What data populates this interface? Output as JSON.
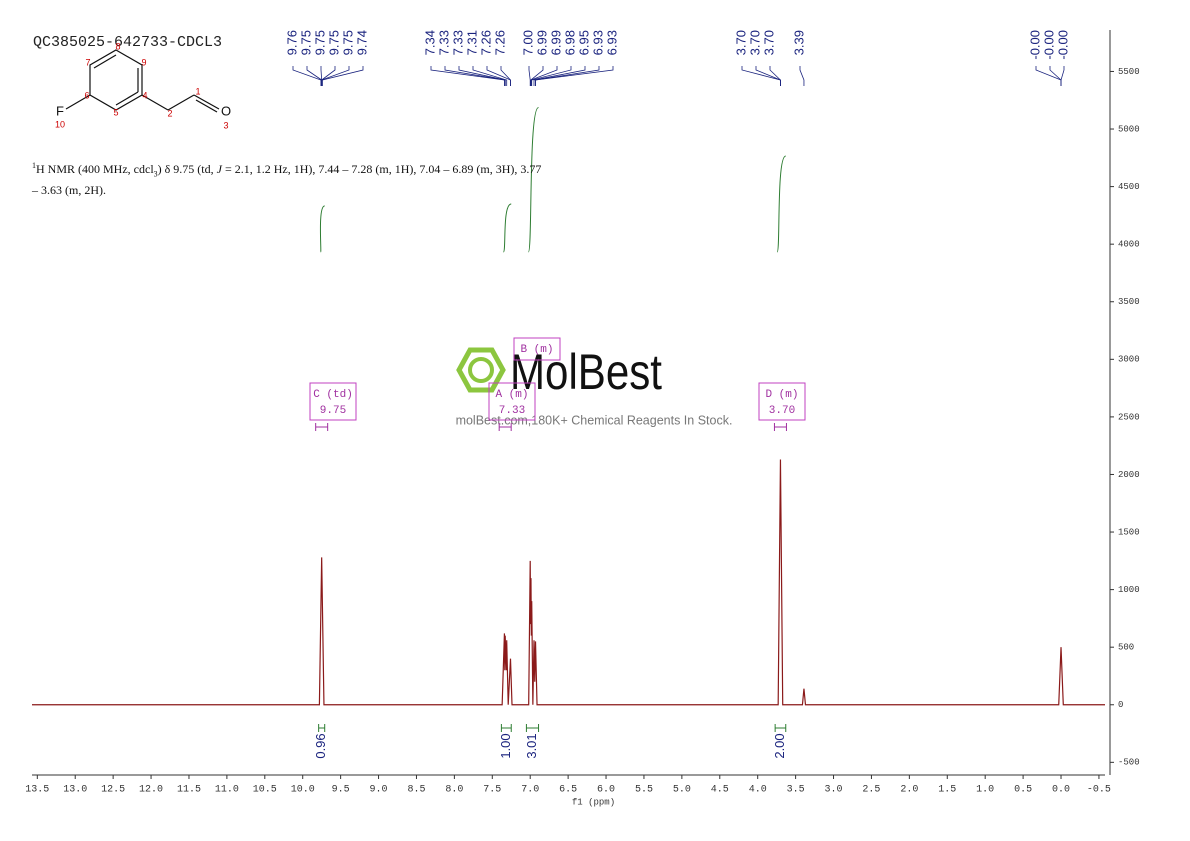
{
  "chart_data": {
    "type": "line",
    "title": "QC385025-642733-CDCL3",
    "xlabel": "f1 (ppm)",
    "color": "#8b1a1a",
    "xlim": [
      13.57,
      -0.58
    ],
    "ylim": [
      -610,
      5860
    ],
    "xticks": [
      13.5,
      {
        "value": 13,
        "label": "13.0"
      },
      12.5,
      {
        "value": 12,
        "label": "12.0"
      },
      11.5,
      {
        "value": 11,
        "label": "11.0"
      },
      10.5,
      {
        "value": 10,
        "label": "10.0"
      },
      9.5,
      {
        "value": 9,
        "label": "9.0"
      },
      8.5,
      {
        "value": 8,
        "label": "8.0"
      },
      7.5,
      {
        "value": 7,
        "label": "7.0"
      },
      6.5,
      {
        "value": 6,
        "label": "6.0"
      },
      5.5,
      {
        "value": 5,
        "label": "5.0"
      },
      4.5,
      {
        "value": 4,
        "label": "4.0"
      },
      3.5,
      {
        "value": 3,
        "label": "3.0"
      },
      2.5,
      {
        "value": 2,
        "label": "2.0"
      },
      1.5,
      {
        "value": 1,
        "label": "1.0"
      },
      0.5,
      {
        "value": 0,
        "label": "0.0"
      },
      -0.5
    ],
    "yticks": [
      -500,
      0,
      500,
      1000,
      1500,
      2000,
      2500,
      3000,
      3500,
      4000,
      4500,
      5000,
      5500
    ],
    "x": [
      13.57,
      9.78,
      9.75,
      9.72,
      7.37,
      7.34,
      7.335,
      7.33,
      7.315,
      7.31,
      7.29,
      7.26,
      7.24,
      7.02,
      7.0,
      6.995,
      6.99,
      6.985,
      6.98,
      6.965,
      6.95,
      6.94,
      6.93,
      6.91,
      3.73,
      3.7,
      3.67,
      3.41,
      3.39,
      3.37,
      0.03,
      0.0,
      -0.03,
      -0.58
    ],
    "values": [
      0,
      0,
      1280,
      0,
      0,
      620,
      300,
      600,
      300,
      560,
      0,
      400,
      0,
      0,
      1250,
      700,
      1100,
      600,
      900,
      0,
      560,
      200,
      550,
      0,
      0,
      2130,
      0,
      0,
      140,
      0,
      0,
      500,
      0,
      0
    ],
    "peak_groups": [
      [
        {
          "value": 9.76,
          "label": "9.76"
        },
        {
          "value": 9.75,
          "label": "9.75"
        },
        {
          "value": 9.75,
          "label": "9.75"
        },
        {
          "value": 9.75,
          "label": "9.75"
        },
        {
          "value": 9.75,
          "label": "9.75"
        },
        {
          "value": 9.74,
          "label": "9.74"
        }
      ],
      [
        {
          "value": 7.34,
          "label": "7.34"
        },
        {
          "value": 7.33,
          "label": "7.33"
        },
        {
          "value": 7.33,
          "label": "7.33"
        },
        {
          "value": 7.31,
          "label": "7.31"
        },
        {
          "value": 7.26,
          "label": "7.26"
        },
        {
          "value": 7.26,
          "label": "7.26"
        }
      ],
      [
        {
          "value": 7.0,
          "label": "7.00"
        },
        {
          "value": 6.99,
          "label": "6.99"
        },
        {
          "value": 6.99,
          "label": "6.99"
        },
        {
          "value": 6.98,
          "label": "6.98"
        },
        {
          "value": 6.95,
          "label": "6.95"
        },
        {
          "value": 6.93,
          "label": "6.93"
        },
        {
          "value": 6.93,
          "label": "6.93"
        }
      ],
      [
        {
          "value": 3.7,
          "label": "3.70"
        },
        {
          "value": 3.7,
          "label": "3.70"
        },
        {
          "value": 3.7,
          "label": "3.70"
        }
      ],
      [
        {
          "value": 3.39,
          "label": "3.39"
        }
      ],
      [
        {
          "value": 0,
          "label": "-0.00"
        },
        {
          "value": 0,
          "label": "-0.00"
        },
        {
          "value": 0,
          "label": "-0.00"
        }
      ]
    ],
    "integrals": [
      {
        "value": 0.96,
        "label": "0.96",
        "range": [
          9.79,
          9.71
        ]
      },
      {
        "value": 1,
        "label": "1.00",
        "range": [
          7.38,
          7.25
        ]
      },
      {
        "value": 3.01,
        "label": "3.01",
        "range": [
          7.05,
          6.89
        ]
      },
      {
        "value": 2,
        "label": "2.00",
        "range": [
          3.77,
          3.63
        ]
      }
    ],
    "multiplets": [
      {
        "label": "C (td)",
        "shift": 9.75
      },
      {
        "label": "A (m)",
        "shift": 7.33
      },
      {
        "label": "B (m)"
      },
      {
        "label": "D (m)",
        "shift": {
          "value": 3.7,
          "label": "3.70"
        }
      }
    ],
    "description": [
      "1",
      "H NMR (400 MHz, cdcl",
      "3",
      ") δ 9.75 (td, ",
      "J",
      " = 2.1, 1.2 Hz, 1H), 7.44 – 7.28 (m, 1H), 7.04 – 6.89 (m, 3H), 3.77",
      "– 3.63 (m, 2H)."
    ]
  },
  "structure": {
    "atom_labels": [
      "F",
      "O"
    ],
    "atom_numbers": [
      1,
      2,
      3,
      4,
      5,
      6,
      7,
      8,
      9,
      10
    ]
  },
  "watermark": {
    "brand": "MolBest",
    "tagline": "molBest.com,180K+ Chemical Reagents In Stock."
  }
}
